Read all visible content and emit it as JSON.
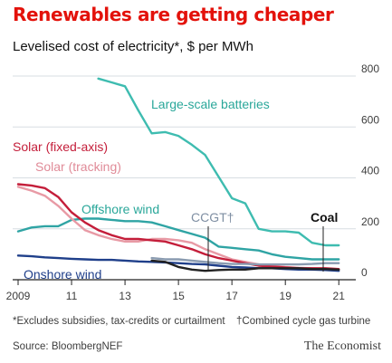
{
  "chart_data": {
    "type": "line",
    "title": "Renewables are getting cheaper",
    "subtitle": "Levelised cost of electricity*, $ per MWh",
    "x_tick_labels": [
      "2009",
      "11",
      "13",
      "15",
      "17",
      "19",
      "21"
    ],
    "y_tick_labels": [
      "0",
      "200",
      "400",
      "600",
      "800"
    ],
    "xlim": [
      2009,
      2021.5
    ],
    "ylim": [
      0,
      800
    ],
    "grid": true,
    "y_axis_side": "right",
    "series": [
      {
        "name": "Large-scale batteries",
        "color": "#3ebcb0",
        "x": [
          2012.0,
          2012.5,
          2013.0,
          2013.5,
          2014.0,
          2014.5,
          2015.0,
          2015.5,
          2016.0,
          2016.5,
          2017.0,
          2017.5,
          2018.0,
          2018.5,
          2019.0,
          2019.5,
          2020.0,
          2020.5,
          2021.0
        ],
        "y": [
          790,
          775,
          760,
          665,
          575,
          580,
          565,
          530,
          490,
          405,
          320,
          300,
          200,
          190,
          190,
          185,
          145,
          135,
          135
        ]
      },
      {
        "name": "Solar (fixed-axis)",
        "color": "#c41e3a",
        "x": [
          2009.0,
          2009.5,
          2010.0,
          2010.5,
          2011.0,
          2011.5,
          2012.0,
          2012.5,
          2013.0,
          2013.5,
          2014.0,
          2014.5,
          2015.0,
          2015.5,
          2016.0,
          2016.5,
          2017.0,
          2017.5,
          2018.0,
          2018.5,
          2019.0,
          2019.5,
          2020.0,
          2020.5,
          2021.0
        ],
        "y": [
          375,
          370,
          360,
          325,
          265,
          225,
          195,
          175,
          160,
          160,
          155,
          150,
          135,
          120,
          100,
          85,
          75,
          65,
          55,
          52,
          48,
          45,
          45,
          45,
          42
        ]
      },
      {
        "name": "Solar (tracking)",
        "color": "#e89aa5",
        "x": [
          2009.0,
          2009.5,
          2010.0,
          2010.5,
          2011.0,
          2011.5,
          2012.0,
          2012.5,
          2013.0,
          2013.5,
          2014.0,
          2014.5,
          2015.0,
          2015.5,
          2016.0,
          2016.5,
          2017.0,
          2017.5,
          2018.0,
          2018.5,
          2019.0,
          2019.5,
          2020.0,
          2020.5,
          2021.0
        ],
        "y": [
          365,
          350,
          330,
          290,
          240,
          195,
          175,
          160,
          150,
          150,
          160,
          160,
          155,
          145,
          120,
          100,
          80,
          70,
          60,
          55,
          50,
          47,
          45,
          42,
          40
        ]
      },
      {
        "name": "Offshore wind",
        "color": "#2fa4a4",
        "x": [
          2009.0,
          2009.5,
          2010.0,
          2010.5,
          2011.0,
          2011.5,
          2012.0,
          2012.5,
          2013.0,
          2013.5,
          2014.0,
          2014.5,
          2015.0,
          2015.5,
          2016.0,
          2016.5,
          2017.0,
          2017.5,
          2018.0,
          2018.5,
          2019.0,
          2019.5,
          2020.0,
          2020.5,
          2021.0
        ],
        "y": [
          190,
          205,
          210,
          210,
          235,
          240,
          240,
          235,
          230,
          230,
          225,
          210,
          195,
          180,
          165,
          130,
          125,
          120,
          115,
          100,
          90,
          85,
          80,
          80,
          80
        ]
      },
      {
        "name": "CCGT†",
        "color": "#8a9bb0",
        "x": [
          2014.0,
          2014.5,
          2015.0,
          2015.5,
          2016.0,
          2016.5,
          2017.0,
          2017.5,
          2018.0,
          2018.5,
          2019.0,
          2019.5,
          2020.0,
          2020.5,
          2021.0
        ],
        "y": [
          85,
          80,
          80,
          75,
          70,
          65,
          62,
          62,
          60,
          60,
          60,
          60,
          62,
          65,
          65
        ]
      },
      {
        "name": "Coal",
        "color": "#222222",
        "x": [
          2014.0,
          2014.5,
          2015.0,
          2015.5,
          2016.0,
          2016.5,
          2017.0,
          2017.5,
          2018.0,
          2018.5,
          2019.0,
          2019.5,
          2020.0,
          2020.5,
          2021.0
        ],
        "y": [
          75,
          70,
          50,
          40,
          35,
          38,
          40,
          40,
          45,
          45,
          45,
          45,
          42,
          42,
          40
        ]
      },
      {
        "name": "Onshore wind",
        "color": "#1f3f8a",
        "x": [
          2009.0,
          2009.5,
          2010.0,
          2010.5,
          2011.0,
          2011.5,
          2012.0,
          2012.5,
          2013.0,
          2013.5,
          2014.0,
          2014.5,
          2015.0,
          2015.5,
          2016.0,
          2016.5,
          2017.0,
          2017.5,
          2018.0,
          2018.5,
          2019.0,
          2019.5,
          2020.0,
          2020.5,
          2021.0
        ],
        "y": [
          95,
          92,
          88,
          85,
          82,
          80,
          78,
          78,
          75,
          72,
          70,
          68,
          65,
          62,
          60,
          55,
          50,
          48,
          45,
          45,
          42,
          40,
          40,
          38,
          35
        ]
      }
    ],
    "footnote": "*Excludes subsidies, tax-credits or curtailment",
    "footnote_dagger": "†Combined cycle gas turbine",
    "source": "Source: BloombergNEF",
    "publisher": "The Economist"
  }
}
